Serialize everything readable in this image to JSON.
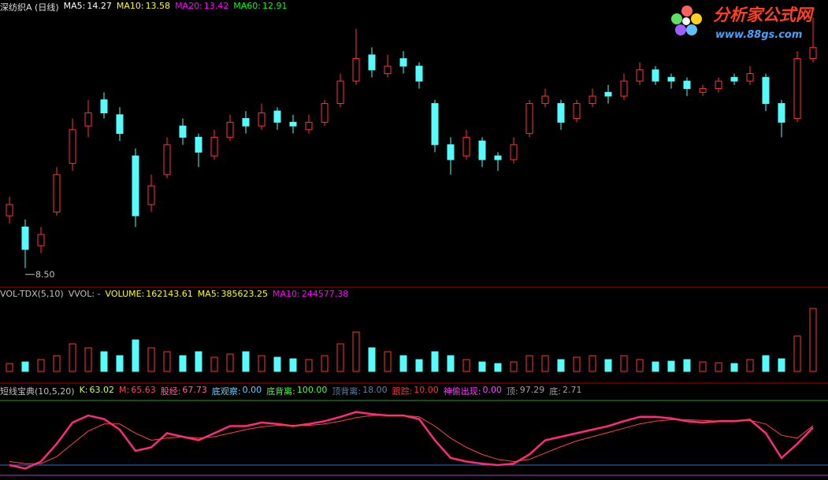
{
  "chart_data": [
    {
      "type": "candlestick",
      "title": "深纺织A (日线)",
      "legend": [
        {
          "label": "MA5:",
          "value": 14.27,
          "color": "#ffffff"
        },
        {
          "label": "MA10:",
          "value": 13.58,
          "color": "#ffff00"
        },
        {
          "label": "MA20:",
          "value": 13.42,
          "color": "#ff00ff"
        },
        {
          "label": "MA60:",
          "value": 12.91,
          "color": "#00ff00"
        }
      ],
      "candles": [
        [
          9.9,
          10.4,
          9.7,
          10.2
        ],
        [
          9.6,
          9.8,
          8.5,
          9.0
        ],
        [
          9.1,
          9.6,
          8.9,
          9.4
        ],
        [
          10.0,
          11.2,
          9.9,
          11.0
        ],
        [
          11.3,
          12.5,
          11.1,
          12.2
        ],
        [
          12.3,
          13.0,
          12.0,
          12.65
        ],
        [
          13.0,
          13.2,
          12.5,
          12.65
        ],
        [
          12.6,
          12.8,
          11.9,
          12.1
        ],
        [
          11.5,
          11.7,
          9.6,
          9.9
        ],
        [
          10.2,
          11.0,
          10.0,
          10.7
        ],
        [
          11.0,
          12.0,
          10.9,
          11.8
        ],
        [
          12.3,
          12.5,
          11.8,
          12.0
        ],
        [
          12.0,
          12.1,
          11.2,
          11.6
        ],
        [
          11.5,
          12.2,
          11.4,
          12.0
        ],
        [
          12.0,
          12.6,
          11.9,
          12.4
        ],
        [
          12.5,
          12.7,
          12.1,
          12.3
        ],
        [
          12.3,
          12.9,
          12.2,
          12.65
        ],
        [
          12.7,
          12.8,
          12.2,
          12.4
        ],
        [
          12.4,
          12.6,
          12.1,
          12.3
        ],
        [
          12.2,
          12.6,
          12.1,
          12.4
        ],
        [
          12.4,
          13.0,
          12.3,
          12.9
        ],
        [
          12.9,
          13.7,
          12.8,
          13.5
        ],
        [
          13.5,
          14.9,
          13.4,
          14.1
        ],
        [
          14.2,
          14.4,
          13.6,
          13.8
        ],
        [
          13.7,
          14.2,
          13.6,
          13.9
        ],
        [
          14.1,
          14.3,
          13.7,
          13.9
        ],
        [
          13.9,
          14.0,
          13.3,
          13.5
        ],
        [
          12.9,
          13.0,
          11.6,
          11.8
        ],
        [
          11.8,
          12.0,
          11.0,
          11.4
        ],
        [
          11.5,
          12.2,
          11.4,
          12.0
        ],
        [
          11.9,
          12.0,
          11.2,
          11.4
        ],
        [
          11.5,
          11.6,
          11.1,
          11.4
        ],
        [
          11.4,
          12.0,
          11.3,
          11.8
        ],
        [
          12.1,
          13.0,
          12.0,
          12.9
        ],
        [
          12.9,
          13.3,
          12.8,
          13.1
        ],
        [
          12.9,
          13.0,
          12.2,
          12.4
        ],
        [
          12.5,
          13.0,
          12.4,
          12.9
        ],
        [
          12.9,
          13.3,
          12.8,
          13.1
        ],
        [
          13.2,
          13.4,
          12.9,
          13.1
        ],
        [
          13.1,
          13.7,
          13.0,
          13.5
        ],
        [
          13.5,
          14.0,
          13.4,
          13.8
        ],
        [
          13.8,
          13.9,
          13.4,
          13.5
        ],
        [
          13.6,
          13.7,
          13.3,
          13.5
        ],
        [
          13.5,
          13.6,
          13.1,
          13.3
        ],
        [
          13.2,
          13.4,
          13.1,
          13.3
        ],
        [
          13.3,
          13.6,
          13.2,
          13.5
        ],
        [
          13.6,
          13.7,
          13.4,
          13.5
        ],
        [
          13.5,
          13.9,
          13.4,
          13.7
        ],
        [
          13.6,
          13.7,
          12.7,
          12.9
        ],
        [
          12.9,
          13.0,
          12.0,
          12.4
        ],
        [
          12.5,
          14.3,
          12.4,
          14.1
        ],
        [
          14.1,
          15.2,
          14.0,
          14.4
        ]
      ],
      "ylim": [
        8.2,
        15.5
      ],
      "low_marker": {
        "value": 8.5,
        "label": "8.50"
      },
      "up_color": "#ff3232",
      "down_color": "#54fcfc"
    },
    {
      "type": "bar",
      "title": "VOL-TDX(5,10)",
      "subtitle": "VVOL: -",
      "legend": [
        {
          "label": "VOLUME:",
          "value": 162143.61,
          "color": "#ffff00"
        },
        {
          "label": "MA5:",
          "value": 385623.25,
          "color": "#ffff00"
        },
        {
          "label": "MA10:",
          "value": 244577.38,
          "color": "#ff00ff"
        }
      ],
      "values": [
        100000,
        120000,
        150000,
        200000,
        350000,
        300000,
        250000,
        200000,
        400000,
        300000,
        250000,
        200000,
        250000,
        180000,
        220000,
        250000,
        200000,
        180000,
        160000,
        150000,
        200000,
        350000,
        500000,
        300000,
        250000,
        200000,
        150000,
        250000,
        200000,
        150000,
        120000,
        100000,
        120000,
        200000,
        200000,
        150000,
        180000,
        200000,
        150000,
        200000,
        150000,
        120000,
        130000,
        150000,
        120000,
        110000,
        100000,
        150000,
        200000,
        160000,
        450000,
        800000
      ],
      "ylim": [
        0,
        900000
      ]
    },
    {
      "type": "line",
      "title": "短线宝典(10,5,20)",
      "legend": [
        {
          "label": "K:",
          "value": 63.02,
          "color": "#c8ff50"
        },
        {
          "label": "M:",
          "value": 65.63,
          "color": "#ff4060"
        },
        {
          "label": "股经:",
          "value": 67.73,
          "color": "#ff60a0"
        },
        {
          "label": "底观察:",
          "value": {
            "value": 0,
            "label": "0.00"
          },
          "color": "#60d0ff"
        },
        {
          "label": "底背离:",
          "value": {
            "value": 100,
            "label": "100.00"
          },
          "color": "#40ff40"
        },
        {
          "label": "顶背离:",
          "value": {
            "value": 18,
            "label": "18.00"
          },
          "color": "#6080a0"
        },
        {
          "label": "跟踪:",
          "value": {
            "value": 10,
            "label": "10.00"
          },
          "color": "#ff3030"
        },
        {
          "label": "神偷出现:",
          "value": {
            "value": 0,
            "label": "0.00"
          },
          "color": "#ff40ff"
        },
        {
          "label": "顶:",
          "value": 97.29,
          "color": "#a0a0a0"
        },
        {
          "label": "底:",
          "value": 2.71,
          "color": "#a0a0a0"
        }
      ],
      "series": [
        {
          "name": "K",
          "color": "#ff2a7a",
          "values": [
            10,
            5,
            15,
            40,
            70,
            80,
            75,
            60,
            30,
            35,
            55,
            50,
            45,
            55,
            65,
            65,
            70,
            68,
            65,
            68,
            72,
            78,
            85,
            82,
            80,
            80,
            75,
            45,
            20,
            15,
            12,
            10,
            12,
            25,
            45,
            50,
            55,
            60,
            65,
            72,
            78,
            78,
            76,
            72,
            70,
            72,
            72,
            74,
            55,
            20,
            40,
            63.02
          ]
        },
        {
          "name": "M",
          "color": "#ff4040",
          "values": [
            15,
            12,
            12,
            22,
            40,
            58,
            68,
            68,
            55,
            45,
            48,
            50,
            48,
            50,
            55,
            60,
            64,
            66,
            66,
            66,
            68,
            72,
            77,
            80,
            80,
            80,
            78,
            65,
            48,
            35,
            25,
            18,
            15,
            18,
            27,
            36,
            44,
            50,
            56,
            62,
            68,
            72,
            74,
            74,
            73,
            72,
            72,
            73,
            68,
            52,
            48,
            65.63
          ]
        }
      ],
      "ylim": [
        0,
        100
      ]
    }
  ],
  "logo": {
    "title": "分析家公式网",
    "url": "www.88gs.com"
  }
}
